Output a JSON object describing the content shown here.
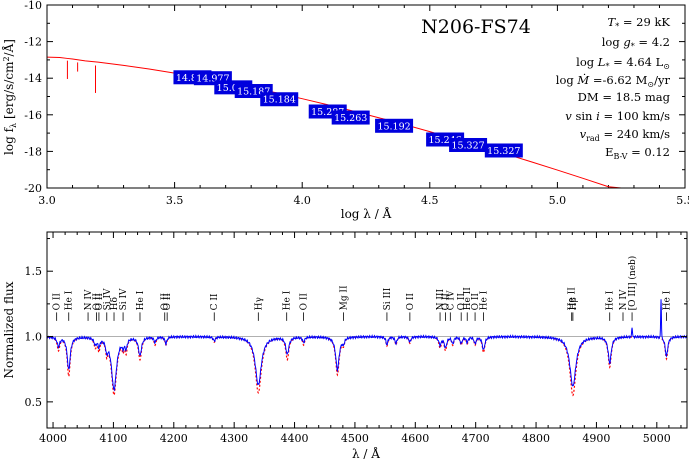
{
  "chart_data": [
    {
      "type": "line",
      "title": "N206-FS74",
      "xlabel": "log λ / Å",
      "ylabel": "log f_λ [erg/s/cm²/Å]",
      "xlim": [
        3.0,
        5.5
      ],
      "ylim": [
        -20,
        -10
      ],
      "xticks": [
        "3.0",
        "3.5",
        "4.0",
        "4.5",
        "5.0",
        "5.5"
      ],
      "yticks": [
        "-10",
        "-12",
        "-14",
        "-16",
        "-18",
        "-20"
      ],
      "grid": false,
      "parameters": [
        {
          "id": "teff",
          "text": "T* = 29 kK"
        },
        {
          "id": "logg",
          "text": "log g* = 4.2"
        },
        {
          "id": "logl",
          "text": "log L* = 4.64 L⊙"
        },
        {
          "id": "logmdot",
          "text": "log Ṁ = -6.62 M⊙/yr"
        },
        {
          "id": "dm",
          "text": "DM = 18.5 mag"
        },
        {
          "id": "vsini",
          "text": "v sin i = 100 km/s"
        },
        {
          "id": "vrad",
          "text": "vrad = 240 km/s"
        },
        {
          "id": "ebv",
          "text": "EB-V = 0.12"
        }
      ],
      "series": [
        {
          "kind": "model-sed",
          "color": "#ff0000",
          "x": [
            3.0,
            3.05,
            3.08,
            3.1,
            3.15,
            3.2,
            3.3,
            3.4,
            3.5,
            3.6,
            3.7,
            3.8,
            3.9,
            4.0,
            4.1,
            4.2,
            4.3,
            4.4,
            4.5,
            4.6,
            4.7,
            4.8,
            4.9,
            5.0,
            5.1,
            5.2,
            5.25
          ],
          "y": [
            -12.85,
            -12.87,
            -12.92,
            -12.95,
            -13.05,
            -13.12,
            -13.3,
            -13.5,
            -13.72,
            -13.96,
            -14.22,
            -14.5,
            -14.8,
            -15.12,
            -15.45,
            -15.8,
            -16.16,
            -16.53,
            -16.92,
            -17.32,
            -17.73,
            -18.15,
            -18.58,
            -19.02,
            -19.47,
            -19.93,
            -20.0
          ]
        }
      ],
      "photometry": [
        {
          "label": "14.851",
          "x": 3.57,
          "y": -13.95
        },
        {
          "label": "14.977",
          "x": 3.65,
          "y": -14.0
        },
        {
          "label": "15.072",
          "x": 3.73,
          "y": -14.5
        },
        {
          "label": "15.187",
          "x": 3.81,
          "y": -14.7
        },
        {
          "label": "15.184",
          "x": 3.91,
          "y": -15.15
        },
        {
          "label": "15.287",
          "x": 4.1,
          "y": -15.82
        },
        {
          "label": "15.263",
          "x": 4.19,
          "y": -16.15
        },
        {
          "label": "15.192",
          "x": 4.36,
          "y": -16.6
        },
        {
          "label": "15.246",
          "x": 4.56,
          "y": -17.35
        },
        {
          "label": "15.327",
          "x": 4.65,
          "y": -17.65
        },
        {
          "label": "15.327",
          "x": 4.79,
          "y": -17.95
        }
      ]
    },
    {
      "type": "line",
      "xlabel": "λ / Å",
      "ylabel": "Normalized flux",
      "xlim": [
        3990,
        5050
      ],
      "ylim": [
        0.3,
        1.8
      ],
      "xticks": [
        "4000",
        "4100",
        "4200",
        "4300",
        "4400",
        "4500",
        "4600",
        "4700",
        "4800",
        "4900",
        "5000"
      ],
      "yticks": [
        "0.5",
        "1.0",
        "1.5"
      ],
      "grid": false,
      "continuum": 1.0,
      "line_ids": [
        {
          "label": "O II",
          "x": 4006
        },
        {
          "label": "He I",
          "x": 4026
        },
        {
          "label": "N IV",
          "x": 4058
        },
        {
          "label": "O II",
          "x": 4072
        },
        {
          "label": "O II",
          "x": 4076
        },
        {
          "label": "Si IV",
          "x": 4089
        },
        {
          "label": "Hδ",
          "x": 4101
        },
        {
          "label": "Si IV",
          "x": 4116
        },
        {
          "label": "He I",
          "x": 4144
        },
        {
          "label": "O II",
          "x": 4185
        },
        {
          "label": "O II",
          "x": 4189
        },
        {
          "label": "C II",
          "x": 4267
        },
        {
          "label": "Hγ",
          "x": 4340
        },
        {
          "label": "He I",
          "x": 4387
        },
        {
          "label": "O II",
          "x": 4415
        },
        {
          "label": "Mg II",
          "x": 4481
        },
        {
          "label": "Si III",
          "x": 4553
        },
        {
          "label": "O II",
          "x": 4591
        },
        {
          "label": "N III",
          "x": 4641
        },
        {
          "label": "O II",
          "x": 4650
        },
        {
          "label": "C IV",
          "x": 4658
        },
        {
          "label": "O II",
          "x": 4676
        },
        {
          "label": "He II",
          "x": 4686
        },
        {
          "label": "O II",
          "x": 4699
        },
        {
          "label": "He I",
          "x": 4713
        },
        {
          "label": "He II",
          "x": 4859
        },
        {
          "label": "Hβ",
          "x": 4861
        },
        {
          "label": "He I",
          "x": 4922
        },
        {
          "label": "N IV",
          "x": 4944
        },
        {
          "label": "[O III] (neb)",
          "x": 4959
        },
        {
          "label": "He I",
          "x": 5016
        }
      ],
      "absorption_lines": [
        {
          "x": 4009,
          "obs": 0.93,
          "model": 0.9,
          "w": 2.5
        },
        {
          "x": 4026,
          "obs": 0.75,
          "model": 0.7,
          "w": 3
        },
        {
          "x": 4070,
          "obs": 0.95,
          "model": 0.93,
          "w": 2.5
        },
        {
          "x": 4076,
          "obs": 0.94,
          "model": 0.91,
          "w": 2
        },
        {
          "x": 4089,
          "obs": 0.92,
          "model": 0.9,
          "w": 2
        },
        {
          "x": 4101,
          "obs": 0.6,
          "model": 0.56,
          "w": 5
        },
        {
          "x": 4116,
          "obs": 0.95,
          "model": 0.93,
          "w": 2
        },
        {
          "x": 4121,
          "obs": 0.93,
          "model": 0.9,
          "w": 2
        },
        {
          "x": 4144,
          "obs": 0.86,
          "model": 0.83,
          "w": 3
        },
        {
          "x": 4169,
          "obs": 0.96,
          "model": 0.94,
          "w": 2
        },
        {
          "x": 4187,
          "obs": 0.95,
          "model": 0.94,
          "w": 2
        },
        {
          "x": 4267,
          "obs": 0.97,
          "model": 0.96,
          "w": 2
        },
        {
          "x": 4340,
          "obs": 0.63,
          "model": 0.57,
          "w": 6
        },
        {
          "x": 4388,
          "obs": 0.87,
          "model": 0.83,
          "w": 3
        },
        {
          "x": 4415,
          "obs": 0.96,
          "model": 0.94,
          "w": 2
        },
        {
          "x": 4471,
          "obs": 0.75,
          "model": 0.71,
          "w": 3.5
        },
        {
          "x": 4481,
          "obs": 0.96,
          "model": 0.95,
          "w": 2
        },
        {
          "x": 4553,
          "obs": 0.94,
          "model": 0.93,
          "w": 2
        },
        {
          "x": 4568,
          "obs": 0.95,
          "model": 0.94,
          "w": 2
        },
        {
          "x": 4591,
          "obs": 0.96,
          "model": 0.95,
          "w": 2
        },
        {
          "x": 4641,
          "obs": 0.94,
          "model": 0.92,
          "w": 2.5
        },
        {
          "x": 4650,
          "obs": 0.92,
          "model": 0.9,
          "w": 2.5
        },
        {
          "x": 4662,
          "obs": 0.95,
          "model": 0.94,
          "w": 2
        },
        {
          "x": 4676,
          "obs": 0.95,
          "model": 0.94,
          "w": 2
        },
        {
          "x": 4686,
          "obs": 0.96,
          "model": 0.95,
          "w": 2
        },
        {
          "x": 4699,
          "obs": 0.95,
          "model": 0.94,
          "w": 2
        },
        {
          "x": 4713,
          "obs": 0.9,
          "model": 0.88,
          "w": 2.5
        },
        {
          "x": 4861,
          "obs": 0.62,
          "model": 0.55,
          "w": 6
        },
        {
          "x": 4922,
          "obs": 0.8,
          "model": 0.77,
          "w": 3
        },
        {
          "x": 5016,
          "obs": 0.85,
          "model": 0.83,
          "w": 2.5
        }
      ],
      "emission_lines": [
        {
          "x": 4959,
          "peak": 1.08,
          "w": 0.6
        },
        {
          "x": 5007,
          "peak": 1.3,
          "w": 0.6
        }
      ],
      "series": [
        {
          "name": "",
          "kind": "observed",
          "color": "#0000ff"
        },
        {
          "name": "",
          "kind": "model",
          "color": "#ff0000"
        }
      ]
    }
  ]
}
